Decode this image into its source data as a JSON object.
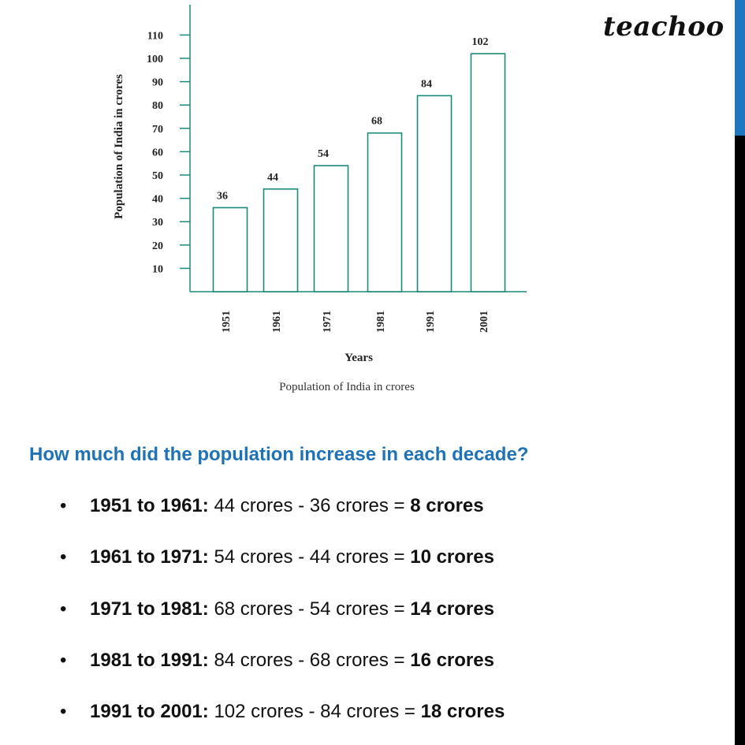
{
  "brand": {
    "logo_text": "teachoo"
  },
  "chart_data": {
    "type": "bar",
    "categories": [
      "1951",
      "1961",
      "1971",
      "1981",
      "1991",
      "2001"
    ],
    "values": [
      36,
      44,
      54,
      68,
      84,
      102
    ],
    "data_labels": [
      "36",
      "44",
      "54",
      "68",
      "84",
      "102"
    ],
    "y_ticks": [
      10,
      20,
      30,
      40,
      50,
      60,
      70,
      80,
      90,
      100,
      110
    ],
    "ylim": [
      0,
      110
    ],
    "xlabel": "Years",
    "ylabel": "Population of India in crores",
    "caption": "Population of India in crores",
    "bar_fill": "#ffffff",
    "bar_stroke": "#1a8a7a",
    "axis_color": "#1a8a7a",
    "grid": false
  },
  "question": "How much did the population increase in each decade?",
  "steps": [
    {
      "period": "1951 to 1961:",
      "calc": "44 crores - 36 crores =",
      "result": "8 crores"
    },
    {
      "period": "1961 to 1971:",
      "calc": "54 crores - 44 crores =",
      "result": "10 crores"
    },
    {
      "period": "1971 to 1981:",
      "calc": "68 crores - 54 crores =",
      "result": "14 crores"
    },
    {
      "period": "1981 to 1991:",
      "calc": "84 crores - 68 crores =",
      "result": "16 crores"
    },
    {
      "period": "1991 to 2001:",
      "calc": "102 crores - 84 crores =",
      "result": "18 crores"
    }
  ],
  "bullet": "•",
  "colors": {
    "accent_blue": "#1e73b8",
    "sidebar_blue": "#1f77c0"
  }
}
